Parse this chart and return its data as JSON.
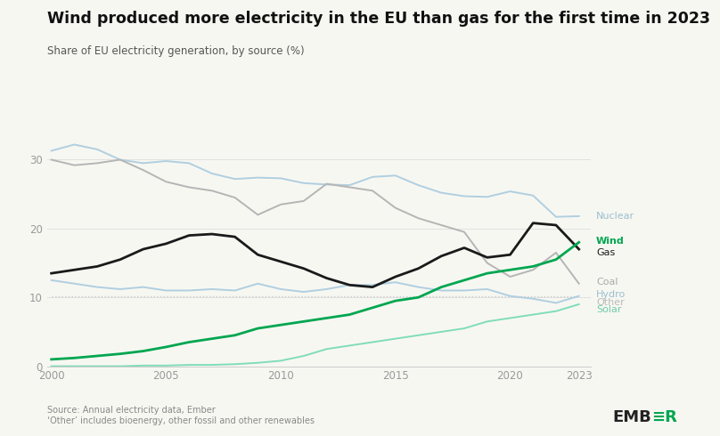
{
  "title": "Wind produced more electricity in the EU than gas for the first time in 2023",
  "subtitle": "Share of EU electricity generation, by source (%)",
  "source_text": "Source: Annual electricity data, Ember\n‘Other’ includes bioenergy, other fossil and other renewables",
  "years": [
    2000,
    2001,
    2002,
    2003,
    2004,
    2005,
    2006,
    2007,
    2008,
    2009,
    2010,
    2011,
    2012,
    2013,
    2014,
    2015,
    2016,
    2017,
    2018,
    2019,
    2020,
    2021,
    2022,
    2023
  ],
  "nuclear": [
    31.3,
    32.2,
    31.5,
    30.0,
    29.5,
    29.8,
    29.5,
    28.0,
    27.2,
    27.4,
    27.3,
    26.6,
    26.4,
    26.3,
    27.5,
    27.7,
    26.3,
    25.2,
    24.7,
    24.6,
    25.4,
    24.8,
    21.7,
    21.8
  ],
  "coal": [
    30.0,
    29.2,
    29.5,
    30.0,
    28.5,
    26.8,
    26.0,
    25.5,
    24.5,
    22.0,
    23.5,
    24.0,
    26.5,
    26.0,
    25.5,
    23.0,
    21.5,
    20.5,
    19.5,
    15.0,
    13.0,
    14.0,
    16.5,
    12.0
  ],
  "gas": [
    13.5,
    14.0,
    14.5,
    15.5,
    17.0,
    17.8,
    19.0,
    19.2,
    18.8,
    16.2,
    15.2,
    14.2,
    12.8,
    11.8,
    11.5,
    13.0,
    14.2,
    16.0,
    17.2,
    15.8,
    16.2,
    20.8,
    20.5,
    17.0
  ],
  "hydro": [
    12.5,
    12.0,
    11.5,
    11.2,
    11.5,
    11.0,
    11.0,
    11.2,
    11.0,
    12.0,
    11.2,
    10.8,
    11.2,
    11.8,
    11.8,
    12.2,
    11.5,
    11.0,
    11.0,
    11.2,
    10.2,
    9.8,
    9.2,
    10.2
  ],
  "wind": [
    1.0,
    1.2,
    1.5,
    1.8,
    2.2,
    2.8,
    3.5,
    4.0,
    4.5,
    5.5,
    6.0,
    6.5,
    7.0,
    7.5,
    8.5,
    9.5,
    10.0,
    11.5,
    12.5,
    13.5,
    14.0,
    14.5,
    15.5,
    18.0
  ],
  "solar": [
    0.0,
    0.0,
    0.0,
    0.0,
    0.1,
    0.1,
    0.2,
    0.2,
    0.3,
    0.5,
    0.8,
    1.5,
    2.5,
    3.0,
    3.5,
    4.0,
    4.5,
    5.0,
    5.5,
    6.5,
    7.0,
    7.5,
    8.0,
    9.0
  ],
  "other": [
    10.2,
    10.2,
    10.2,
    10.2,
    10.2,
    10.2,
    10.2,
    10.2,
    10.2,
    10.2,
    10.2,
    10.2,
    10.2,
    10.2,
    10.2,
    10.2,
    10.2,
    10.2,
    10.2,
    10.2,
    10.2,
    10.2,
    10.2,
    10.2
  ],
  "background_color": "#f7f7f2",
  "top_bar_color": "#00a650",
  "line_colors": {
    "nuclear": "#b0cfe0",
    "coal": "#b5b5b5",
    "gas": "#1a1a1a",
    "hydro": "#b0cfe0",
    "wind": "#00a650",
    "solar": "#80ddb8",
    "other": "#cccccc"
  },
  "label_colors": {
    "nuclear": "#9abfcf",
    "coal": "#aaaaaa",
    "gas": "#1a1a1a",
    "hydro": "#9abfcf",
    "wind": "#00a650",
    "solar": "#70ccaa",
    "other": "#bbbbbb"
  },
  "ylim": [
    0,
    38
  ],
  "yticks": [
    0,
    10,
    20,
    30
  ],
  "xticks": [
    2000,
    2005,
    2010,
    2015,
    2020,
    2023
  ]
}
